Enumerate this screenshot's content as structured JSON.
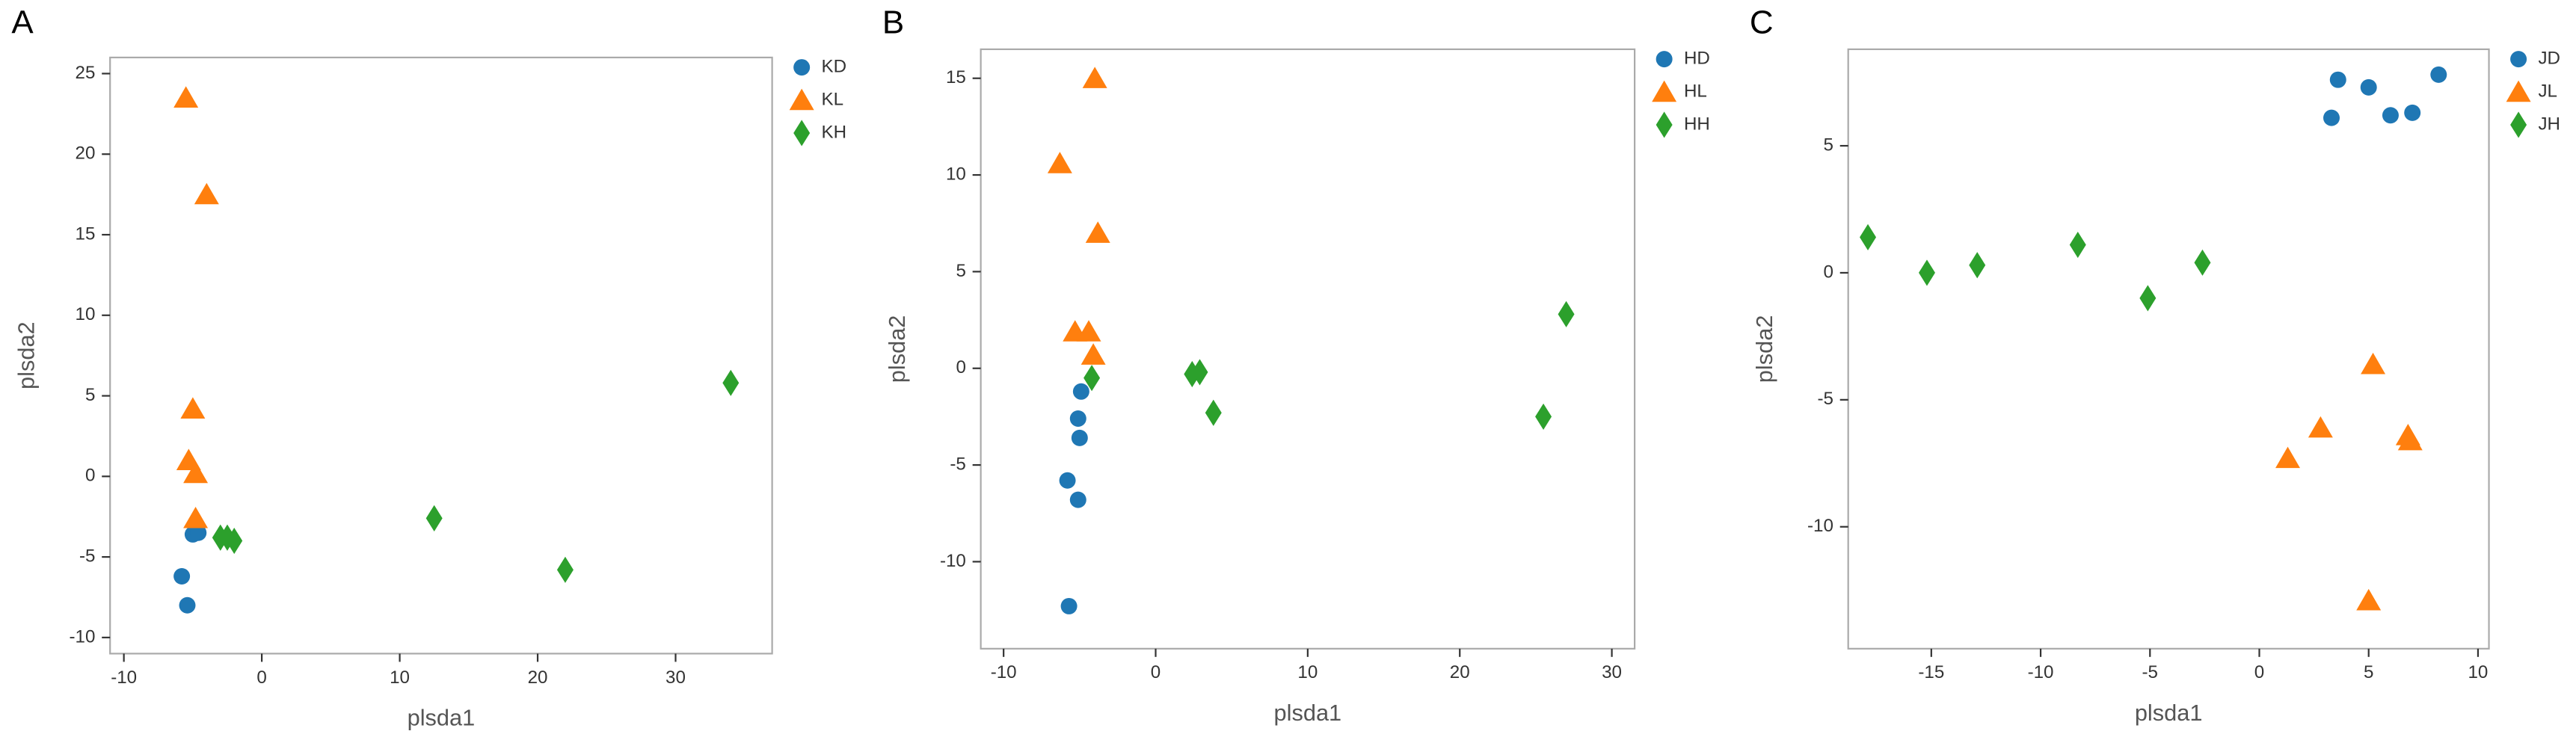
{
  "chart_data": [
    {
      "type": "scatter",
      "panel": "A",
      "xlabel": "plsda1",
      "ylabel": "plsda2",
      "xlim": [
        -11,
        37
      ],
      "ylim": [
        -11,
        26
      ],
      "xticks": [
        -10,
        0,
        10,
        20,
        30
      ],
      "yticks": [
        -10,
        -5,
        0,
        5,
        10,
        15,
        20,
        25
      ],
      "series": [
        {
          "name": "KD",
          "color": "#1f77b4",
          "marker": "circle",
          "x": [
            -5.8,
            -5.4,
            -5,
            -4.6
          ],
          "values": [
            -6.2,
            -8,
            -3.6,
            -3.5
          ]
        },
        {
          "name": "KL",
          "color": "#ff7f0e",
          "marker": "triangle",
          "x": [
            -5.5,
            -4,
            -5,
            -5.3,
            -4.8,
            -4.8
          ],
          "values": [
            23.5,
            17.5,
            4.2,
            1,
            0.2,
            -2.6
          ]
        },
        {
          "name": "KH",
          "color": "#2ca02c",
          "marker": "diamond",
          "x": [
            -3,
            -2.5,
            -2,
            12.5,
            22,
            34
          ],
          "values": [
            -3.8,
            -3.8,
            -4,
            -2.6,
            -5.8,
            5.8
          ]
        }
      ]
    },
    {
      "type": "scatter",
      "panel": "B",
      "xlabel": "plsda1",
      "ylabel": "plsda2",
      "xlim": [
        -11.5,
        31.5
      ],
      "ylim": [
        -14.5,
        16.5
      ],
      "xticks": [
        -10,
        0,
        10,
        20,
        30
      ],
      "yticks": [
        -10,
        -5,
        0,
        5,
        10,
        15
      ],
      "series": [
        {
          "name": "HD",
          "color": "#1f77b4",
          "marker": "circle",
          "x": [
            -4.9,
            -5.1,
            -5,
            -5.8,
            -5.1,
            -5.7
          ],
          "values": [
            -1.2,
            -2.6,
            -3.6,
            -5.8,
            -6.8,
            -12.3
          ]
        },
        {
          "name": "HL",
          "color": "#ff7f0e",
          "marker": "triangle",
          "x": [
            -4,
            -6.3,
            -3.8,
            -5.3,
            -4.4,
            -4.1
          ],
          "values": [
            15,
            10.6,
            7,
            1.9,
            1.9,
            0.7
          ]
        },
        {
          "name": "HH",
          "color": "#2ca02c",
          "marker": "diamond",
          "x": [
            -4.2,
            2.4,
            2.9,
            3.8,
            25.5,
            27
          ],
          "values": [
            -0.5,
            -0.3,
            -0.2,
            -2.3,
            -2.5,
            2.8
          ]
        }
      ]
    },
    {
      "type": "scatter",
      "panel": "C",
      "xlabel": "plsda1",
      "ylabel": "plsda2",
      "xlim": [
        -18.8,
        10.5
      ],
      "ylim": [
        -14.8,
        8.8
      ],
      "xticks": [
        -15,
        -10,
        -5,
        0,
        5,
        10
      ],
      "yticks": [
        -10,
        -5,
        0,
        5
      ],
      "series": [
        {
          "name": "JD",
          "color": "#1f77b4",
          "marker": "circle",
          "x": [
            3.6,
            5,
            3.3,
            6,
            7,
            8.2
          ],
          "values": [
            7.6,
            7.3,
            6.1,
            6.2,
            6.3,
            7.8
          ]
        },
        {
          "name": "JL",
          "color": "#ff7f0e",
          "marker": "triangle",
          "x": [
            5.2,
            2.8,
            1.3,
            6.8,
            6.9,
            5
          ],
          "values": [
            -3.6,
            -6.1,
            -7.3,
            -6.4,
            -6.6,
            -12.9
          ]
        },
        {
          "name": "JH",
          "color": "#2ca02c",
          "marker": "diamond",
          "x": [
            -17.9,
            -15.2,
            -12.9,
            -8.3,
            -5.1,
            -2.6
          ],
          "values": [
            1.4,
            0,
            0.3,
            1.1,
            -1,
            0.4
          ]
        }
      ]
    }
  ]
}
